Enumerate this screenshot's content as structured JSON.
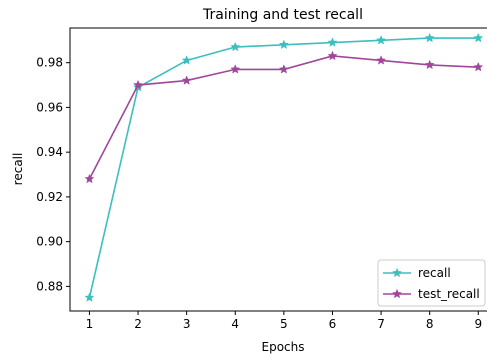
{
  "chart_data": {
    "type": "line",
    "title": "Training and test recall",
    "xlabel": "Epochs",
    "ylabel": "recall",
    "x": [
      1,
      2,
      3,
      4,
      5,
      6,
      7,
      8,
      9
    ],
    "xlim": [
      0.6,
      9.2
    ],
    "ylim": [
      0.869,
      0.9955
    ],
    "xticks": [
      1,
      2,
      3,
      4,
      5,
      6,
      7,
      8,
      9
    ],
    "yticks": [
      0.88,
      0.9,
      0.92,
      0.94,
      0.96,
      0.98
    ],
    "ytick_labels": [
      "0.88",
      "0.90",
      "0.92",
      "0.94",
      "0.96",
      "0.98"
    ],
    "grid": false,
    "legend_position": "lower-right",
    "series": [
      {
        "name": "recall",
        "color": "#3bbfbf",
        "marker": "star",
        "values": [
          0.875,
          0.969,
          0.981,
          0.987,
          0.988,
          0.989,
          0.99,
          0.991,
          0.991
        ]
      },
      {
        "name": "test_recall",
        "color": "#a0479b",
        "marker": "star",
        "values": [
          0.928,
          0.97,
          0.972,
          0.977,
          0.977,
          0.983,
          0.981,
          0.979,
          0.978
        ]
      }
    ]
  }
}
